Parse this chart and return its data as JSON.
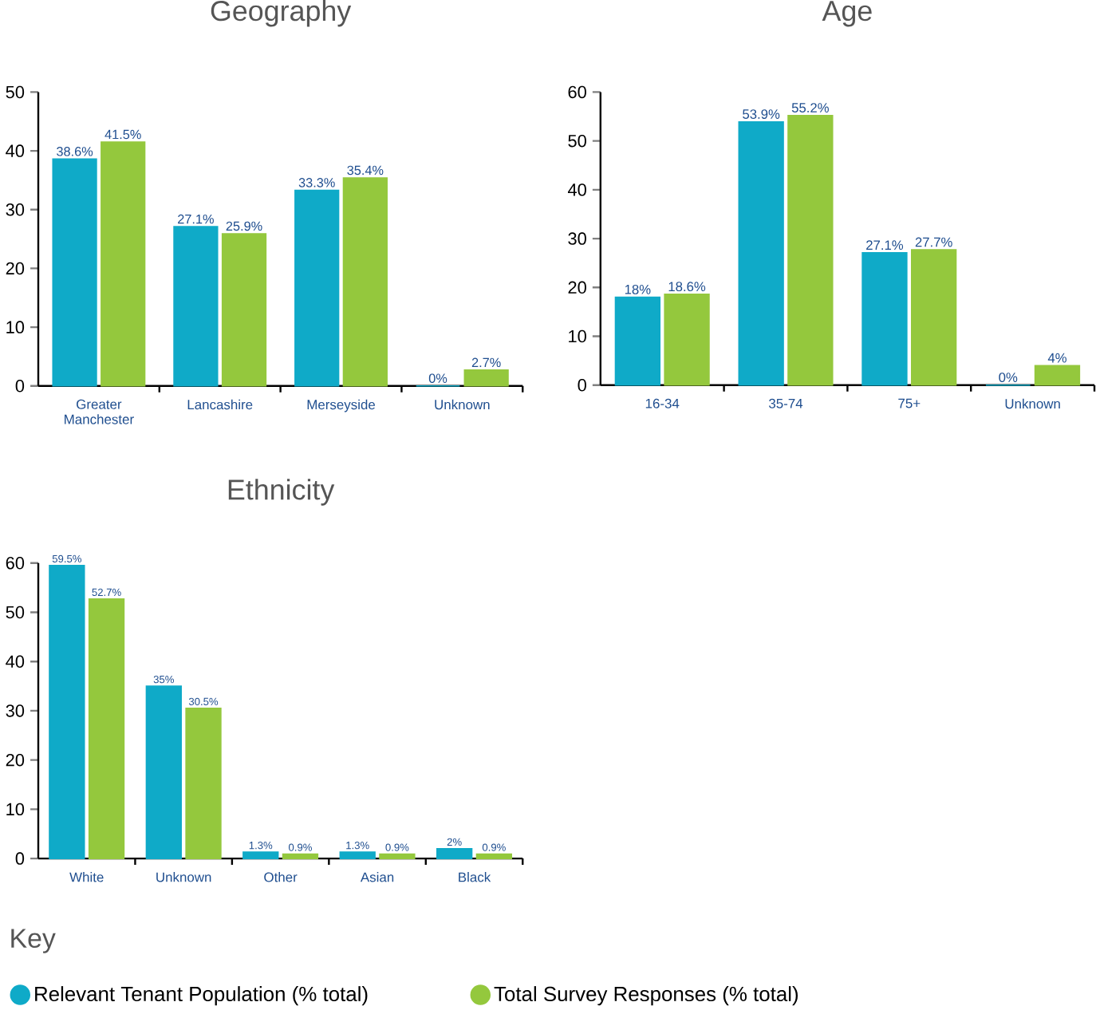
{
  "chart_data": [
    {
      "type": "bar",
      "title": "Geography",
      "categories": [
        "Greater Manchester",
        "Lancashire",
        "Merseyside",
        "Unknown"
      ],
      "ylim": [
        0,
        50
      ],
      "yticks": [
        0,
        10,
        20,
        30,
        40,
        50
      ],
      "legend": "bottom",
      "legend_title": "Key",
      "series": [
        {
          "name": "Relevant Tenant Population (% total)",
          "color": "#0faac8",
          "values": [
            38.6,
            27.1,
            33.3,
            0
          ],
          "value_labels": [
            "38.6%",
            "27.1%",
            "33.3%",
            "0%"
          ]
        },
        {
          "name": "Total Survey Responses (% total)",
          "color": "#94c83d",
          "values": [
            41.5,
            25.9,
            35.4,
            2.7
          ],
          "value_labels": [
            "41.5%",
            "25.9%",
            "35.4%",
            "2.7%"
          ]
        }
      ]
    },
    {
      "type": "bar",
      "title": "Age",
      "categories": [
        "16-34",
        "35-74",
        "75+",
        "Unknown"
      ],
      "ylim": [
        0,
        60
      ],
      "yticks": [
        0,
        10,
        20,
        30,
        40,
        50,
        60
      ],
      "series": [
        {
          "color": "#0faac8",
          "values": [
            18,
            53.9,
            27.1,
            0
          ],
          "value_labels": [
            "18%",
            "53.9%",
            "27.1%",
            "0%"
          ]
        },
        {
          "color": "#94c83d",
          "values": [
            18.6,
            55.2,
            27.7,
            4
          ],
          "value_labels": [
            "18.6%",
            "55.2%",
            "27.7%",
            "4%"
          ]
        }
      ]
    },
    {
      "type": "bar",
      "title": "Ethnicity",
      "categories": [
        "White",
        "Unknown",
        "Other",
        "Asian",
        "Black"
      ],
      "ylim": [
        0,
        60
      ],
      "yticks": [
        0,
        10,
        20,
        30,
        40,
        50,
        60
      ],
      "series": [
        {
          "color": "#0faac8",
          "values": [
            59.5,
            35,
            1.3,
            1.3,
            2
          ],
          "value_labels": [
            "59.5%",
            "35%",
            "1.3%",
            "1.3%",
            "2%"
          ]
        },
        {
          "color": "#94c83d",
          "values": [
            52.7,
            30.5,
            0.9,
            0.9,
            0.9
          ],
          "value_labels": [
            "52.7%",
            "30.5%",
            "0.9%",
            "0.9%",
            "0.9%"
          ]
        }
      ]
    }
  ]
}
